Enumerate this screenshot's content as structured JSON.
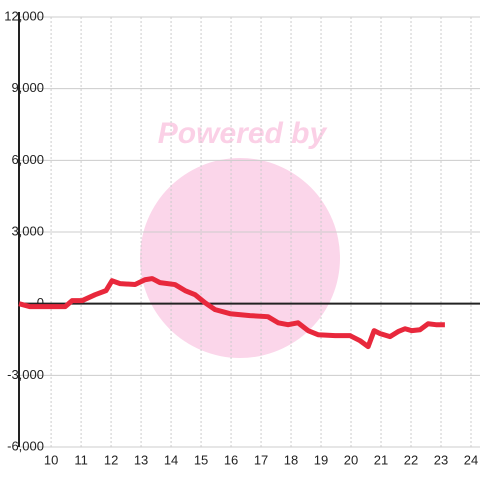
{
  "chart_data": {
    "type": "line",
    "watermark": "Powered by",
    "x": [
      8.93,
      9.3,
      10.47,
      10.7,
      11.03,
      11.47,
      11.83,
      12.03,
      12.3,
      12.8,
      13.13,
      13.37,
      13.63,
      14.13,
      14.47,
      14.8,
      15.13,
      15.47,
      15.97,
      16.63,
      17.23,
      17.57,
      17.9,
      18.23,
      18.57,
      18.9,
      19.47,
      19.97,
      20.3,
      20.57,
      20.77,
      20.97,
      21.3,
      21.57,
      21.8,
      22.03,
      22.3,
      22.57,
      22.83,
      23.13
    ],
    "series": [
      {
        "color": "#e8283c",
        "values": [
          0,
          -125,
          -125,
          125,
          125,
          375,
          545,
          960,
          840,
          800,
          1000,
          1050,
          880,
          800,
          545,
          375,
          40,
          -250,
          -420,
          -500,
          -545,
          -800,
          -880,
          -800,
          -1130,
          -1300,
          -1340,
          -1340,
          -1550,
          -1800,
          -1130,
          -1255,
          -1380,
          -1170,
          -1050,
          -1130,
          -1090,
          -840,
          -880,
          -880
        ]
      }
    ],
    "xlim": [
      8.93,
      24.3
    ],
    "xticks": [
      10,
      11,
      12,
      13,
      14,
      15,
      16,
      17,
      18,
      19,
      20,
      21,
      22,
      23,
      24
    ],
    "ylim": [
      -6000,
      12000
    ],
    "yticks": [
      {
        "value": -6000,
        "label": "-6,000"
      },
      {
        "value": -3000,
        "label": "-3,000"
      },
      0,
      {
        "value": 3000,
        "label": "3,000"
      },
      {
        "value": 6000,
        "label": "6,000"
      },
      {
        "value": 9000,
        "label": "9,000"
      },
      {
        "value": 12000,
        "label": "12,000"
      }
    ],
    "grid": true
  }
}
